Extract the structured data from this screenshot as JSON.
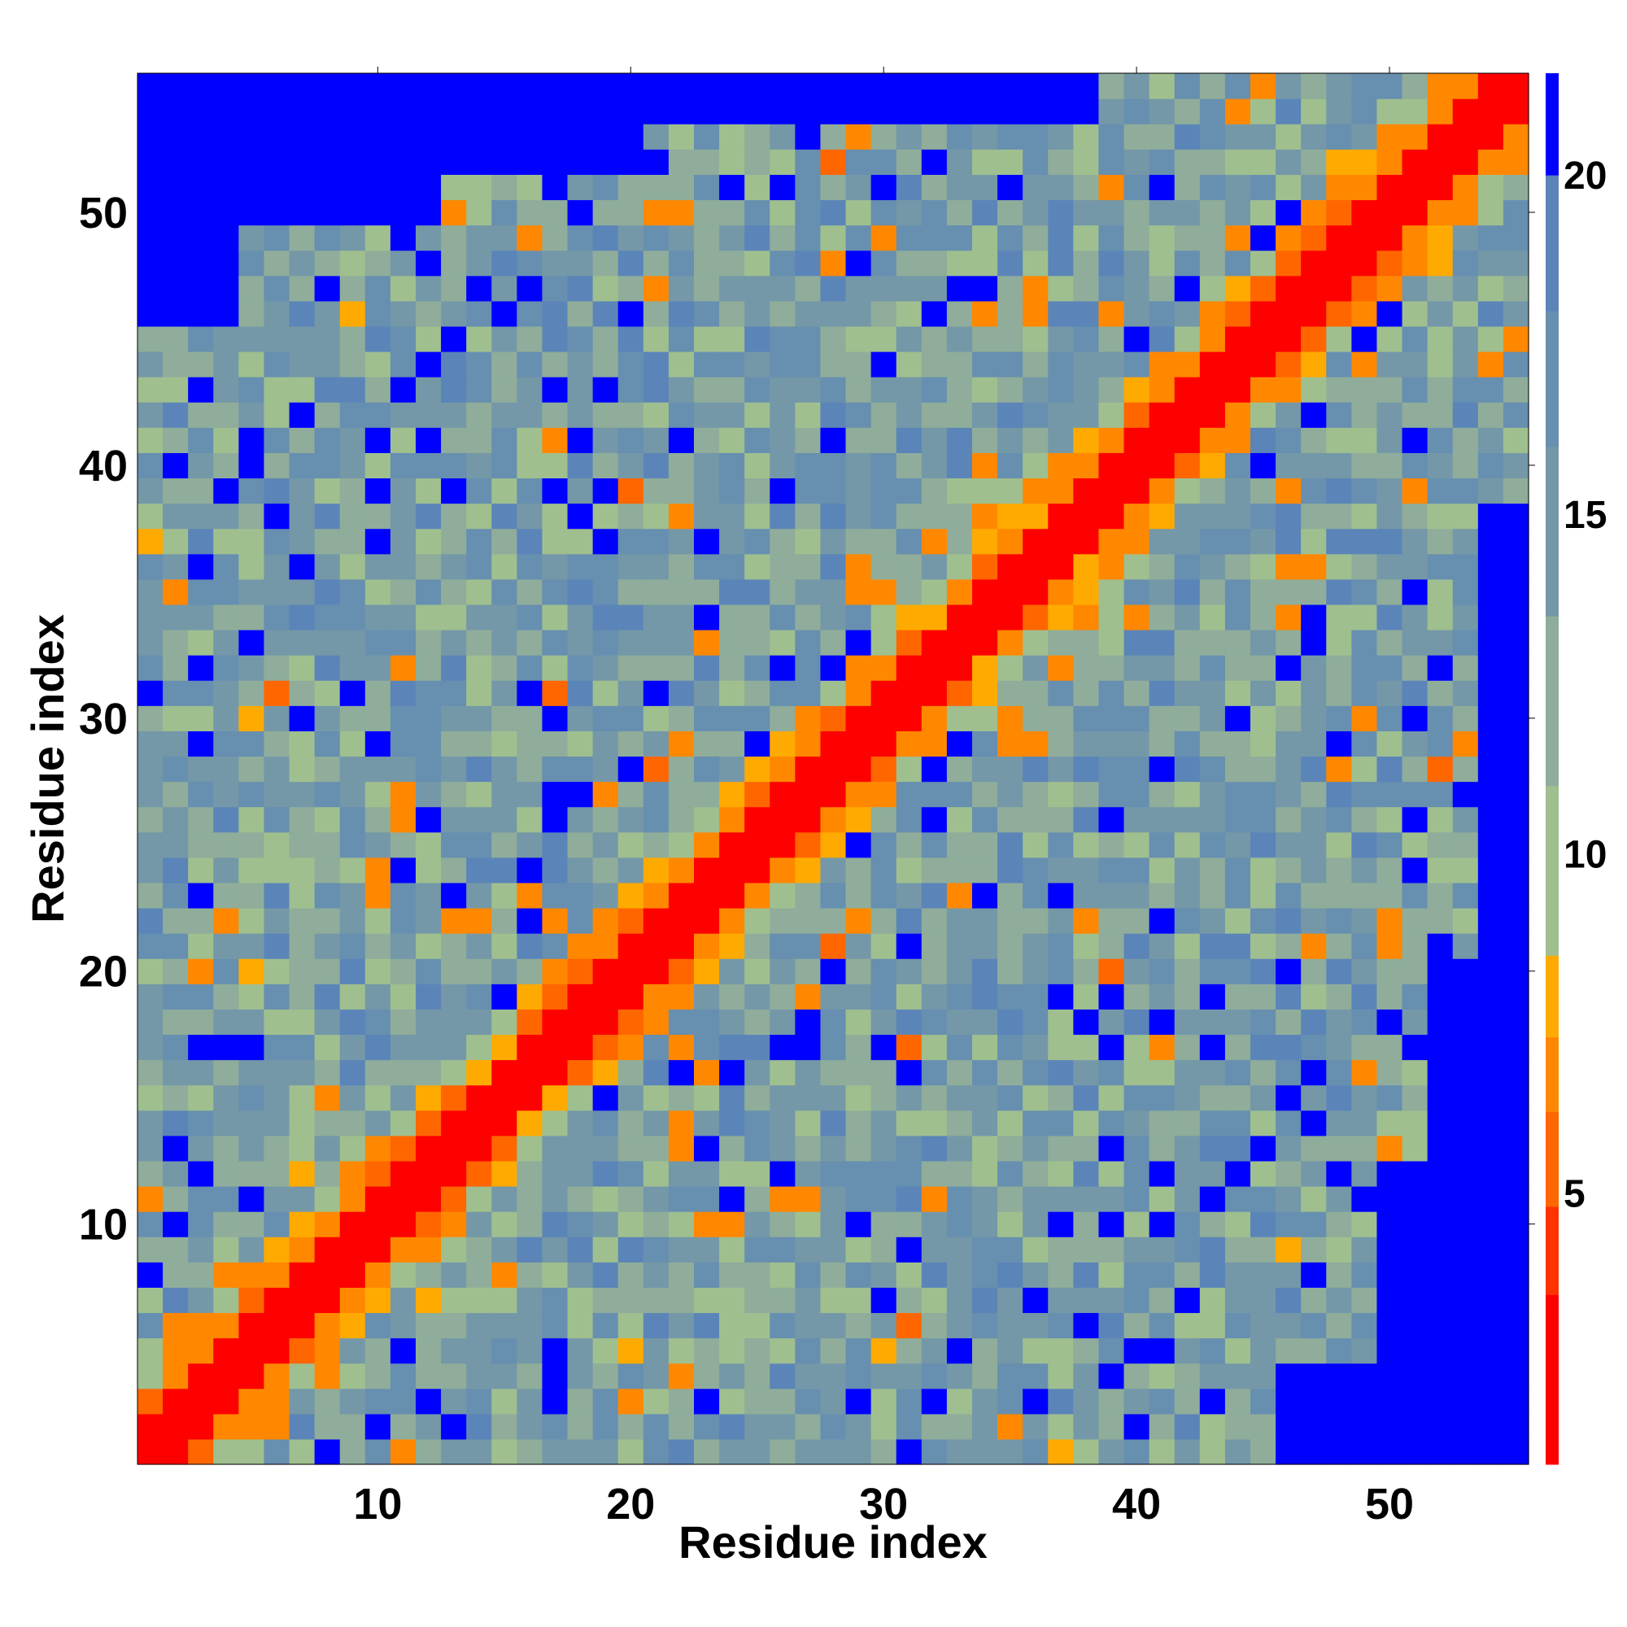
{
  "chart_data": {
    "type": "heatmap",
    "title": "",
    "xlabel": "Residue index",
    "ylabel": "Residue index",
    "n": 55,
    "xlim": [
      0.5,
      55.5
    ],
    "ylim": [
      0.5,
      55.5
    ],
    "x_ticks": [
      10,
      20,
      30,
      40,
      50
    ],
    "y_ticks": [
      10,
      20,
      30,
      40,
      50
    ],
    "colorbar": {
      "ticks": [
        5,
        10,
        15,
        20
      ],
      "range": [
        1,
        21.5
      ],
      "bins": [
        {
          "from": 1.0,
          "to": 3.5,
          "color": "#ff0000"
        },
        {
          "from": 3.5,
          "to": 4.8,
          "color": "#ff3300"
        },
        {
          "from": 4.8,
          "to": 6.2,
          "color": "#ff6600"
        },
        {
          "from": 6.2,
          "to": 7.3,
          "color": "#ff8800"
        },
        {
          "from": 7.3,
          "to": 8.5,
          "color": "#ffaa00"
        },
        {
          "from": 8.5,
          "to": 11.0,
          "color": "#9fbf8f"
        },
        {
          "from": 11.0,
          "to": 13.5,
          "color": "#8fad9a"
        },
        {
          "from": 13.5,
          "to": 16.0,
          "color": "#7498a8"
        },
        {
          "from": 16.0,
          "to": 18.0,
          "color": "#678fb0"
        },
        {
          "from": 18.0,
          "to": 20.0,
          "color": "#5b85b8"
        },
        {
          "from": 20.0,
          "to": 21.5,
          "color": "#0000ff"
        }
      ]
    },
    "matrix_description": "Symmetric residue distance matrix: diagonal band below 4 (red), first off-diagonals 4-8 (orange), mid distances 9-19 (green-blue), beyond cutoff 21 (blue)"
  }
}
